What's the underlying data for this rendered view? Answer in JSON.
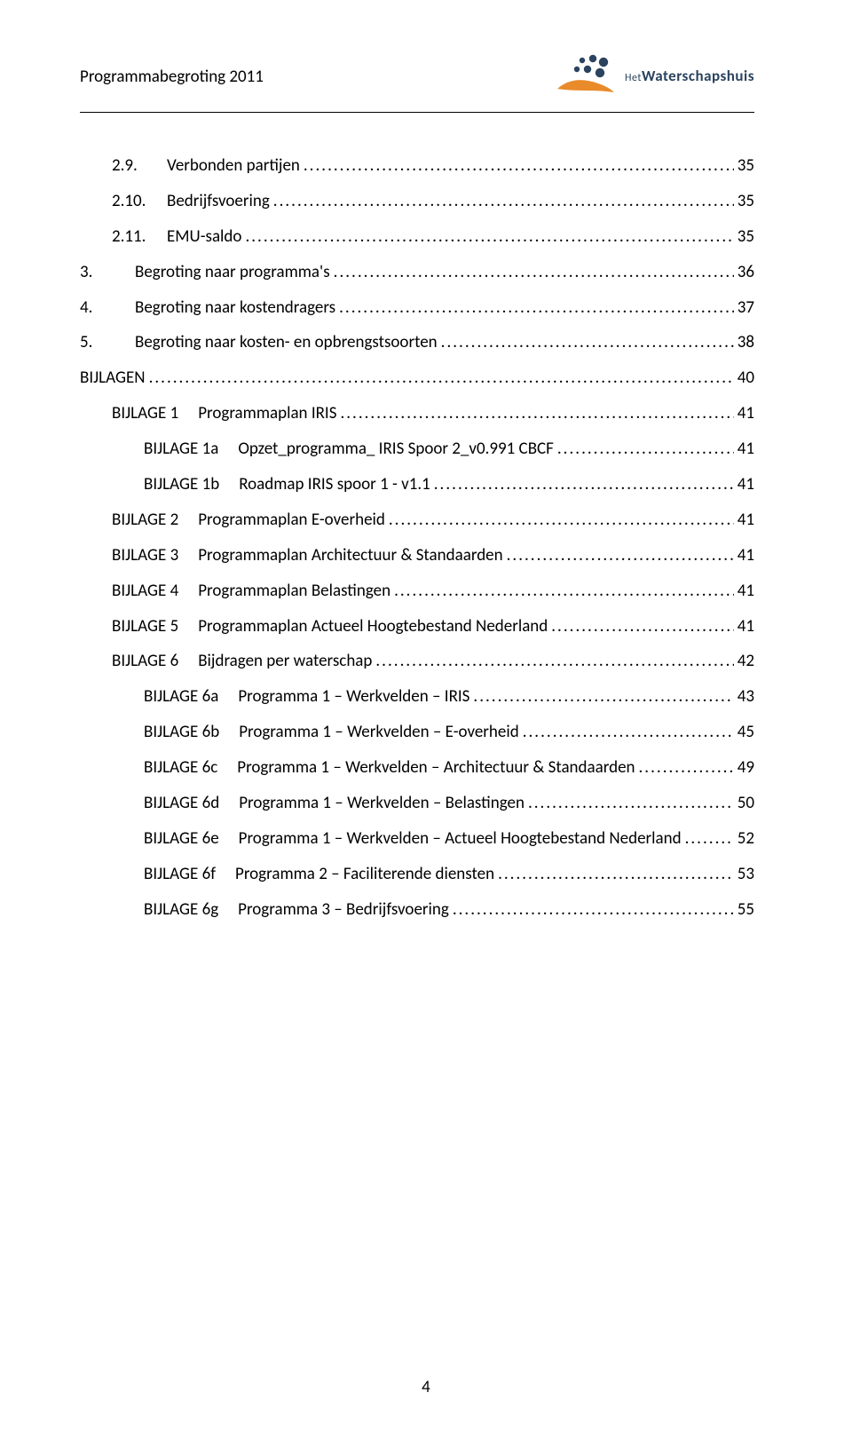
{
  "header": {
    "doc_title": "Programmabegroting 2011",
    "logo_text_top": "Het",
    "logo_text_bottom": "Waterschapshuis",
    "logo_dot_color": "#2a435f",
    "logo_swoosh_color": "#e98b2a"
  },
  "toc": [
    {
      "indent": 1,
      "num": "2.9.",
      "label": "Verbonden partijen",
      "page": "35"
    },
    {
      "indent": 1,
      "num": "2.10.",
      "label": "Bedrijfsvoering",
      "page": "35"
    },
    {
      "indent": 1,
      "num": "2.11.",
      "label": "EMU-saldo",
      "page": "35"
    },
    {
      "indent": 0,
      "num": "3.",
      "label": "Begroting naar programma's",
      "page": "36"
    },
    {
      "indent": 0,
      "num": "4.",
      "label": "Begroting naar kostendragers",
      "page": "37"
    },
    {
      "indent": 0,
      "num": "5.",
      "label": "Begroting naar kosten- en opbrengstsoorten",
      "page": "38"
    },
    {
      "indent": 0,
      "num": "",
      "label": "BIJLAGEN",
      "page": "40"
    },
    {
      "indent": 2,
      "num": "BIJLAGE 1",
      "label": "Programmaplan IRIS",
      "page": "41"
    },
    {
      "indent": 3,
      "num": "BIJLAGE 1a",
      "label": "Opzet_programma_ IRIS Spoor 2_v0.991 CBCF",
      "page": "41"
    },
    {
      "indent": 3,
      "num": "BIJLAGE 1b",
      "label": "Roadmap IRIS spoor 1 - v1.1",
      "page": "41"
    },
    {
      "indent": 2,
      "num": "BIJLAGE 2",
      "label": "Programmaplan E-overheid",
      "page": "41"
    },
    {
      "indent": 2,
      "num": "BIJLAGE 3",
      "label": "Programmaplan Architectuur & Standaarden",
      "page": "41"
    },
    {
      "indent": 2,
      "num": "BIJLAGE 4",
      "label": "Programmaplan Belastingen",
      "page": "41"
    },
    {
      "indent": 2,
      "num": "BIJLAGE 5",
      "label": "Programmaplan Actueel Hoogtebestand Nederland",
      "page": "41"
    },
    {
      "indent": 2,
      "num": "BIJLAGE 6",
      "label": "Bijdragen per waterschap",
      "page": "42"
    },
    {
      "indent": 3,
      "num": "BIJLAGE 6a",
      "label": "Programma 1 – Werkvelden – IRIS",
      "page": "43"
    },
    {
      "indent": 3,
      "num": "BIJLAGE 6b",
      "label": "Programma 1 – Werkvelden – E-overheid",
      "page": "45"
    },
    {
      "indent": 3,
      "num": "BIJLAGE 6c",
      "label": "Programma 1 – Werkvelden – Architectuur & Standaarden",
      "page": "49"
    },
    {
      "indent": 3,
      "num": "BIJLAGE 6d",
      "label": "Programma 1 – Werkvelden – Belastingen",
      "page": "50"
    },
    {
      "indent": 3,
      "num": "BIJLAGE 6e",
      "label": "Programma 1 – Werkvelden – Actueel Hoogtebestand Nederland",
      "page": "52"
    },
    {
      "indent": 3,
      "num": "BIJLAGE 6f",
      "label": "Programma 2 – Faciliterende diensten",
      "page": "53"
    },
    {
      "indent": 3,
      "num": "BIJLAGE 6g",
      "label": "Programma 3 – Bedrijfsvoering",
      "page": "55"
    }
  ],
  "footer_page": "4"
}
